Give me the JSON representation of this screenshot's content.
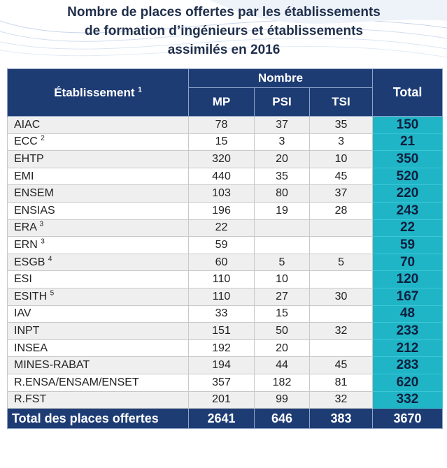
{
  "title": {
    "line1": "Nombre de places offertes par les établissements",
    "line2": "de formation d’ingénieurs et établissements",
    "line3": "assimilés en 2016"
  },
  "header": {
    "etablissement": "Établissement",
    "etablissement_note": "1",
    "nombre": "Nombre",
    "mp": "MP",
    "psi": "PSI",
    "tsi": "TSI",
    "total": "Total"
  },
  "rows": [
    {
      "name": "AIAC",
      "note": "",
      "mp": "78",
      "psi": "37",
      "tsi": "35",
      "total": "150"
    },
    {
      "name": "ECC",
      "note": "2",
      "mp": "15",
      "psi": "3",
      "tsi": "3",
      "total": "21"
    },
    {
      "name": "EHTP",
      "note": "",
      "mp": "320",
      "psi": "20",
      "tsi": "10",
      "total": "350"
    },
    {
      "name": "EMI",
      "note": "",
      "mp": "440",
      "psi": "35",
      "tsi": "45",
      "total": "520"
    },
    {
      "name": "ENSEM",
      "note": "",
      "mp": "103",
      "psi": "80",
      "tsi": "37",
      "total": "220"
    },
    {
      "name": "ENSIAS",
      "note": "",
      "mp": "196",
      "psi": "19",
      "tsi": "28",
      "total": "243"
    },
    {
      "name": "ERA",
      "note": "3",
      "mp": "22",
      "psi": "",
      "tsi": "",
      "total": "22"
    },
    {
      "name": "ERN",
      "note": "3",
      "mp": "59",
      "psi": "",
      "tsi": "",
      "total": "59"
    },
    {
      "name": "ESGB",
      "note": "4",
      "mp": "60",
      "psi": "5",
      "tsi": "5",
      "total": "70"
    },
    {
      "name": "ESI",
      "note": "",
      "mp": "110",
      "psi": "10",
      "tsi": "",
      "total": "120"
    },
    {
      "name": "ESITH",
      "note": "5",
      "mp": "110",
      "psi": "27",
      "tsi": "30",
      "total": "167"
    },
    {
      "name": "IAV",
      "note": "",
      "mp": "33",
      "psi": "15",
      "tsi": "",
      "total": "48"
    },
    {
      "name": "INPT",
      "note": "",
      "mp": "151",
      "psi": "50",
      "tsi": "32",
      "total": "233"
    },
    {
      "name": "INSEA",
      "note": "",
      "mp": "192",
      "psi": "20",
      "tsi": "",
      "total": "212"
    },
    {
      "name": "MINES-RABAT",
      "note": "",
      "mp": "194",
      "psi": "44",
      "tsi": "45",
      "total": "283"
    },
    {
      "name": "R.ENSA/ENSAM/ENSET",
      "note": "",
      "mp": "357",
      "psi": "182",
      "tsi": "81",
      "total": "620"
    },
    {
      "name": "R.FST",
      "note": "",
      "mp": "201",
      "psi": "99",
      "tsi": "32",
      "total": "332"
    }
  ],
  "footer": {
    "label": "Total des places offertes",
    "mp": "2641",
    "psi": "646",
    "tsi": "383",
    "total": "3670"
  },
  "colors": {
    "header_bg": "#1e3c74",
    "total_col_bg": "#1fb5c7",
    "title_color": "#1f2e4a"
  }
}
